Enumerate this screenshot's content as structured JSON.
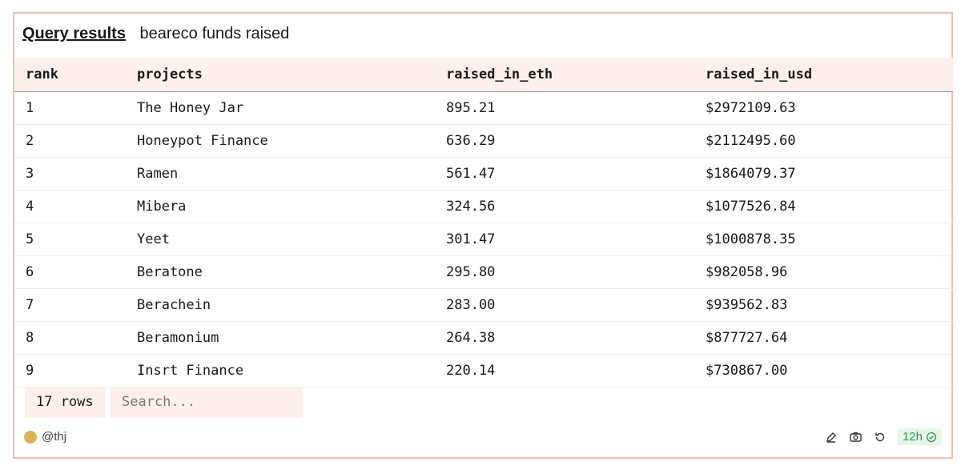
{
  "header": {
    "link": "Query results",
    "title": "beareco funds raised"
  },
  "table": {
    "columns": [
      "rank",
      "projects",
      "raised_in_eth",
      "raised_in_usd"
    ],
    "rows": [
      [
        "1",
        "The Honey Jar",
        "895.21",
        "$2972109.63"
      ],
      [
        "2",
        "Honeypot Finance",
        "636.29",
        "$2112495.60"
      ],
      [
        "3",
        "Ramen",
        "561.47",
        "$1864079.37"
      ],
      [
        "4",
        "Mibera",
        "324.56",
        "$1077526.84"
      ],
      [
        "5",
        "Yeet",
        "301.47",
        "$1000878.35"
      ],
      [
        "6",
        "Beratone",
        "295.80",
        "$982058.96"
      ],
      [
        "7",
        "Berachein",
        "283.00",
        "$939562.83"
      ],
      [
        "8",
        "Beramonium",
        "264.38",
        "$877727.64"
      ],
      [
        "9",
        "Insrt Finance",
        "220.14",
        "$730867.00"
      ]
    ]
  },
  "footer": {
    "row_count": "17 rows",
    "search_placeholder": "Search...",
    "user": "@thj",
    "age": "12h"
  }
}
